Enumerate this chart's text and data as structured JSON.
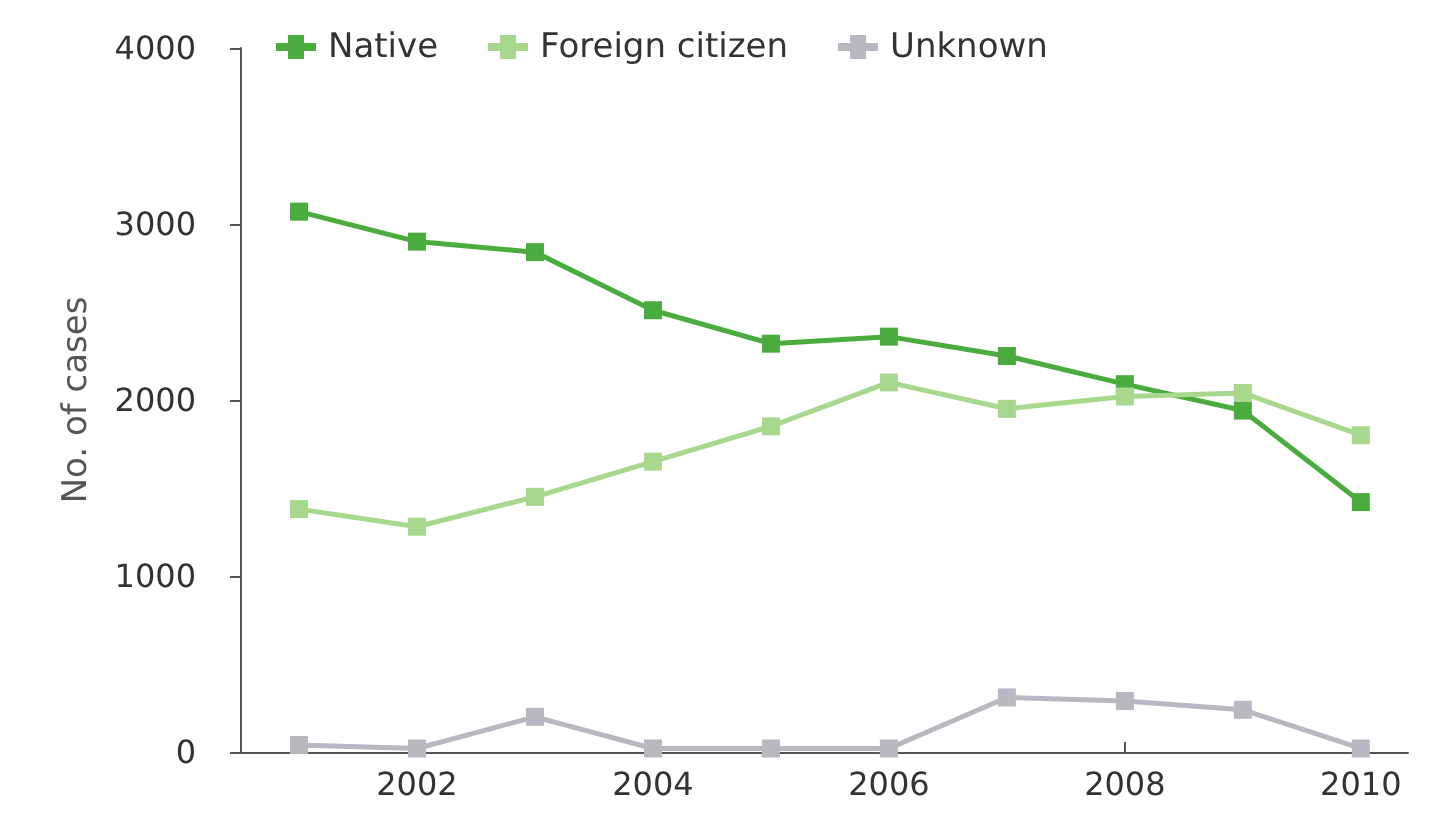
{
  "chart_data": {
    "type": "line",
    "ylabel": "No. of cases",
    "x": [
      2001,
      2002,
      2003,
      2004,
      2005,
      2006,
      2007,
      2008,
      2009,
      2010
    ],
    "series": [
      {
        "name": "Native",
        "color": "#4aab3f",
        "values": [
          3070,
          2900,
          2840,
          2510,
          2320,
          2360,
          2250,
          2090,
          1940,
          1420
        ]
      },
      {
        "name": "Foreign citizen",
        "color": "#a8d88e",
        "values": [
          1380,
          1280,
          1450,
          1650,
          1850,
          2100,
          1950,
          2020,
          2040,
          1800
        ]
      },
      {
        "name": "Unknown",
        "color": "#b8b8c0",
        "values": [
          40,
          20,
          200,
          20,
          20,
          20,
          310,
          290,
          240,
          20
        ]
      }
    ],
    "xlim": [
      2000.5,
      2010.4
    ],
    "xticks": [
      2002,
      2004,
      2006,
      2008,
      2010
    ],
    "ylim": [
      0,
      4000
    ],
    "yticks": [
      0,
      1000,
      2000,
      3000,
      4000
    ],
    "grid": false,
    "legend": "top",
    "marker": "square",
    "line_style": "solid"
  }
}
